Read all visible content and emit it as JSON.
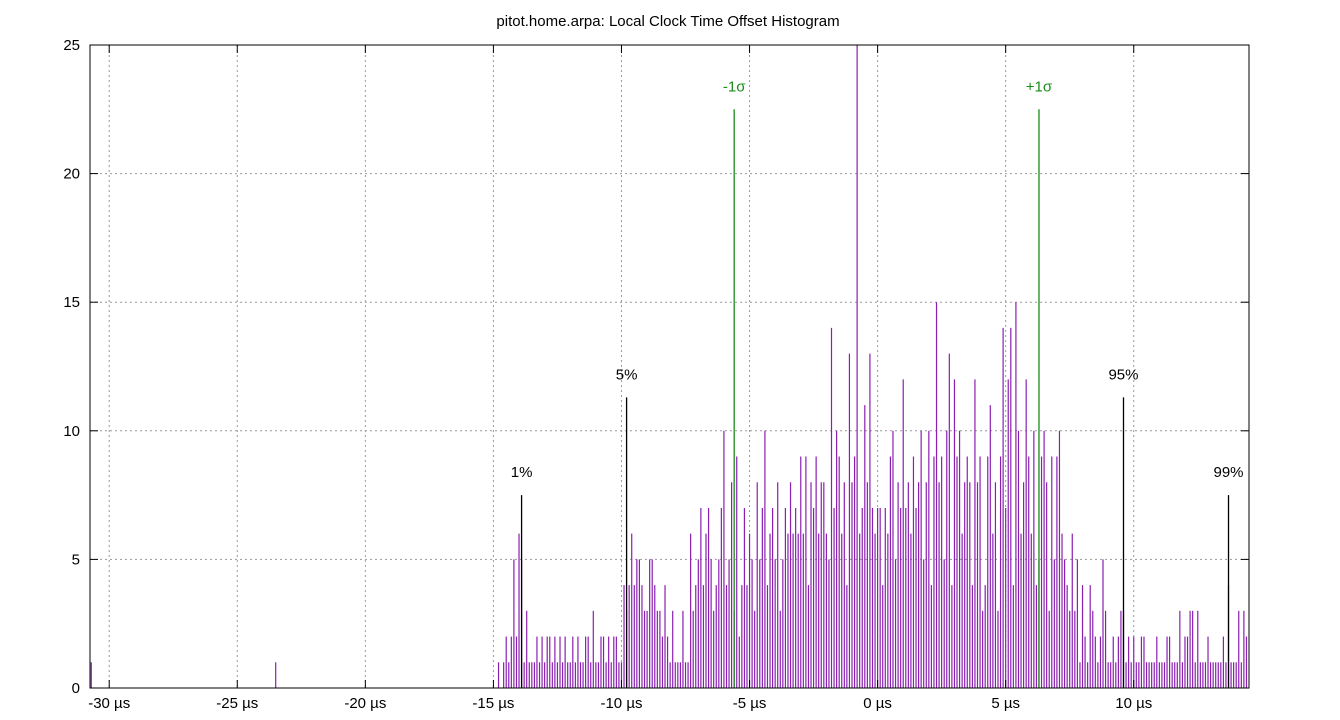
{
  "chart_data": {
    "type": "bar",
    "title": "pitot.home.arpa: Local Clock Time Offset Histogram",
    "xlabel": "",
    "ylabel": "",
    "unit": "µs",
    "xlim": [
      -30.75,
      14.5
    ],
    "ylim": [
      0,
      25
    ],
    "grid": true,
    "bin_width": 0.1,
    "x_ticks": [
      -30,
      -25,
      -20,
      -15,
      -10,
      -5,
      0,
      5,
      10
    ],
    "x_tick_labels": [
      "-30 µs",
      "-25 µs",
      "-20 µs",
      "-15 µs",
      "-10 µs",
      "-5 µs",
      "0 µs",
      "5 µs",
      "10 µs"
    ],
    "y_ticks": [
      0,
      5,
      10,
      15,
      20,
      25
    ],
    "y_tick_labels": [
      "0",
      "5",
      "10",
      "15",
      "20",
      "25"
    ],
    "colors": {
      "bars": "#8b1fb0",
      "sigma": "#1a8c1a",
      "percentile": "#000000",
      "grid": "#999999"
    },
    "markers": [
      {
        "label": "1%",
        "x": -13.9,
        "height": 7.5,
        "kind": "percentile"
      },
      {
        "label": "5%",
        "x": -9.8,
        "height": 11.3,
        "kind": "percentile"
      },
      {
        "label": "-1σ",
        "x": -5.6,
        "height": 22.5,
        "kind": "sigma"
      },
      {
        "label": "+1σ",
        "x": 6.3,
        "height": 22.5,
        "kind": "sigma"
      },
      {
        "label": "95%",
        "x": 9.6,
        "height": 11.3,
        "kind": "percentile"
      },
      {
        "label": "99%",
        "x": 13.7,
        "height": 7.5,
        "kind": "percentile"
      }
    ],
    "series": [
      {
        "x": [
          -30.7,
          -23.5,
          -14.8,
          -14.6,
          -14.5,
          -14.4,
          -14.3,
          -14.2,
          -14.1,
          -14.0,
          -13.9,
          -13.8,
          -13.7,
          -13.6,
          -13.5,
          -13.4,
          -13.3,
          -13.2,
          -13.1,
          -13.0,
          -12.9,
          -12.8,
          -12.7,
          -12.6,
          -12.5,
          -12.4,
          -12.3,
          -12.2,
          -12.1,
          -12.0,
          -11.9,
          -11.8,
          -11.7,
          -11.6,
          -11.5,
          -11.4,
          -11.3,
          -11.2,
          -11.1,
          -11.0,
          -10.9,
          -10.8,
          -10.7,
          -10.6,
          -10.5,
          -10.4,
          -10.3,
          -10.2,
          -10.1,
          -10.0,
          -9.9,
          -9.8,
          -9.7,
          -9.6,
          -9.5,
          -9.4,
          -9.3,
          -9.2,
          -9.1,
          -9.0,
          -8.9,
          -8.8,
          -8.7,
          -8.6,
          -8.5,
          -8.4,
          -8.3,
          -8.2,
          -8.1,
          -8.0,
          -7.9,
          -7.8,
          -7.7,
          -7.6,
          -7.5,
          -7.4,
          -7.3,
          -7.2,
          -7.1,
          -7.0,
          -6.9,
          -6.8,
          -6.7,
          -6.6,
          -6.5,
          -6.4,
          -6.3,
          -6.2,
          -6.1,
          -6.0,
          -5.9,
          -5.8,
          -5.7,
          -5.6,
          -5.5,
          -5.4,
          -5.3,
          -5.2,
          -5.1,
          -5.0,
          -4.9,
          -4.8,
          -4.7,
          -4.6,
          -4.5,
          -4.4,
          -4.3,
          -4.2,
          -4.1,
          -4.0,
          -3.9,
          -3.8,
          -3.7,
          -3.6,
          -3.5,
          -3.4,
          -3.3,
          -3.2,
          -3.1,
          -3.0,
          -2.9,
          -2.8,
          -2.7,
          -2.6,
          -2.5,
          -2.4,
          -2.3,
          -2.2,
          -2.1,
          -2.0,
          -1.9,
          -1.8,
          -1.7,
          -1.6,
          -1.5,
          -1.4,
          -1.3,
          -1.2,
          -1.1,
          -1.0,
          -0.9,
          -0.8,
          -0.7,
          -0.6,
          -0.5,
          -0.4,
          -0.3,
          -0.2,
          -0.1,
          0.0,
          0.1,
          0.2,
          0.3,
          0.4,
          0.5,
          0.6,
          0.7,
          0.8,
          0.9,
          1.0,
          1.1,
          1.2,
          1.3,
          1.4,
          1.5,
          1.6,
          1.7,
          1.8,
          1.9,
          2.0,
          2.1,
          2.2,
          2.3,
          2.4,
          2.5,
          2.6,
          2.7,
          2.8,
          2.9,
          3.0,
          3.1,
          3.2,
          3.3,
          3.4,
          3.5,
          3.6,
          3.7,
          3.8,
          3.9,
          4.0,
          4.1,
          4.2,
          4.3,
          4.4,
          4.5,
          4.6,
          4.7,
          4.8,
          4.9,
          5.0,
          5.1,
          5.2,
          5.3,
          5.4,
          5.5,
          5.6,
          5.7,
          5.8,
          5.9,
          6.0,
          6.1,
          6.2,
          6.3,
          6.4,
          6.5,
          6.6,
          6.7,
          6.8,
          6.9,
          7.0,
          7.1,
          7.2,
          7.3,
          7.4,
          7.5,
          7.6,
          7.7,
          7.8,
          7.9,
          8.0,
          8.1,
          8.2,
          8.3,
          8.4,
          8.5,
          8.6,
          8.7,
          8.8,
          8.9,
          9.0,
          9.1,
          9.2,
          9.3,
          9.4,
          9.5,
          9.6,
          9.7,
          9.8,
          9.9,
          10.0,
          10.1,
          10.2,
          10.3,
          10.4,
          10.5,
          10.6,
          10.7,
          10.8,
          10.9,
          11.0,
          11.1,
          11.2,
          11.3,
          11.4,
          11.5,
          11.6,
          11.7,
          11.8,
          11.9,
          12.0,
          12.1,
          12.2,
          12.3,
          12.4,
          12.5,
          12.6,
          12.7,
          12.8,
          12.9,
          13.0,
          13.1,
          13.2,
          13.3,
          13.4,
          13.5,
          13.6,
          13.7,
          13.8,
          13.9,
          14.0,
          14.1,
          14.2,
          14.3,
          14.4
        ],
        "values": [
          1,
          1,
          1,
          1,
          2,
          1,
          2,
          5,
          2,
          6,
          5,
          1,
          3,
          1,
          1,
          1,
          2,
          1,
          2,
          1,
          2,
          2,
          1,
          2,
          1,
          2,
          1,
          2,
          1,
          1,
          2,
          1,
          2,
          1,
          1,
          2,
          2,
          1,
          3,
          1,
          1,
          2,
          2,
          1,
          2,
          1,
          2,
          2,
          1,
          1,
          4,
          3,
          4,
          6,
          4,
          5,
          5,
          4,
          3,
          3,
          5,
          5,
          4,
          3,
          3,
          2,
          4,
          2,
          1,
          3,
          1,
          1,
          1,
          3,
          1,
          1,
          6,
          3,
          4,
          5,
          7,
          4,
          6,
          7,
          5,
          3,
          4,
          5,
          7,
          10,
          4,
          5,
          8,
          3,
          9,
          2,
          4,
          7,
          4,
          6,
          5,
          3,
          8,
          5,
          7,
          10,
          4,
          6,
          7,
          5,
          8,
          3,
          5,
          7,
          6,
          8,
          6,
          7,
          6,
          9,
          6,
          9,
          4,
          8,
          7,
          9,
          6,
          8,
          8,
          6,
          5,
          14,
          7,
          10,
          9,
          6,
          8,
          4,
          13,
          8,
          9,
          25,
          6,
          7,
          11,
          8,
          13,
          7,
          6,
          7,
          7,
          4,
          7,
          6,
          9,
          10,
          5,
          8,
          7,
          12,
          7,
          8,
          6,
          9,
          7,
          8,
          10,
          5,
          8,
          10,
          4,
          9,
          15,
          8,
          9,
          5,
          10,
          13,
          4,
          12,
          9,
          10,
          6,
          8,
          9,
          8,
          4,
          12,
          8,
          9,
          3,
          4,
          9,
          11,
          6,
          8,
          3,
          9,
          14,
          7,
          12,
          14,
          4,
          15,
          10,
          6,
          8,
          12,
          9,
          6,
          10,
          4,
          5,
          9,
          10,
          8,
          3,
          9,
          5,
          9,
          10,
          6,
          5,
          4,
          3,
          6,
          3,
          5,
          1,
          4,
          2,
          1,
          4,
          3,
          2,
          1,
          2,
          5,
          3,
          1,
          1,
          2,
          1,
          2,
          3,
          3,
          1,
          2,
          1,
          2,
          1,
          1,
          2,
          2,
          1,
          1,
          1,
          1,
          2,
          1,
          1,
          1,
          2,
          2,
          1,
          1,
          1,
          3,
          1,
          2,
          2,
          3,
          3,
          1,
          3,
          1,
          1,
          1,
          2,
          1,
          1,
          1,
          1,
          1,
          2,
          1,
          4,
          1,
          1,
          1,
          3,
          1,
          3,
          2
        ]
      }
    ]
  }
}
